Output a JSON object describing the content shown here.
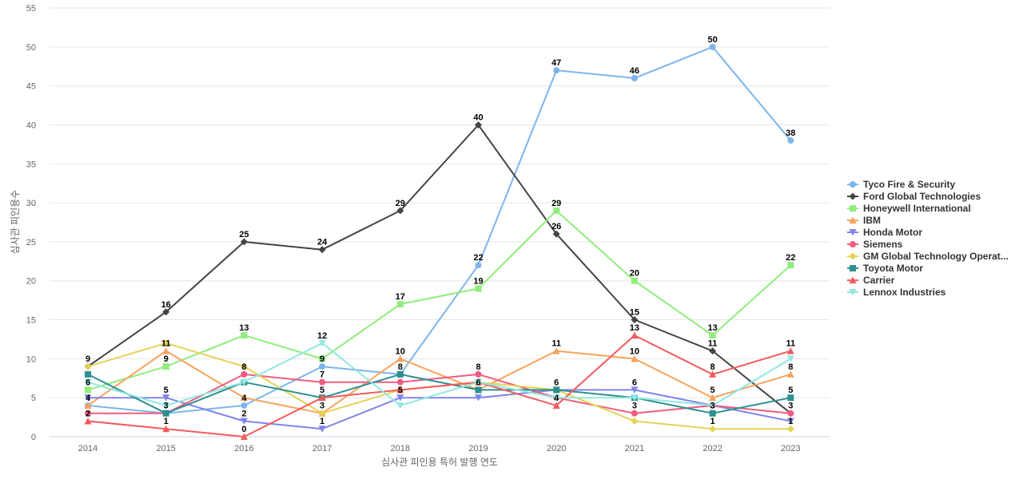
{
  "chart_data": {
    "type": "line",
    "title": "",
    "xlabel": "심사관 피인용 특허 발행 연도",
    "ylabel": "심사관 피인용수",
    "x": [
      "2014",
      "2015",
      "2016",
      "2017",
      "2018",
      "2019",
      "2020",
      "2021",
      "2022",
      "2023"
    ],
    "ylim": [
      0,
      55
    ],
    "yticks": [
      0,
      5,
      10,
      15,
      20,
      25,
      30,
      35,
      40,
      45,
      50,
      55
    ],
    "grid": true,
    "legend_position": "right",
    "series": [
      {
        "name": "Tyco Fire & Security",
        "color": "#7cb5ec",
        "marker": "circle",
        "values": [
          4,
          3,
          4,
          9,
          8,
          22,
          47,
          46,
          50,
          38
        ]
      },
      {
        "name": "Ford Global Technologies",
        "color": "#434348",
        "marker": "diamond",
        "values": [
          9,
          16,
          25,
          24,
          29,
          40,
          26,
          15,
          11,
          3
        ]
      },
      {
        "name": "Honeywell International",
        "color": "#90ed7d",
        "marker": "square",
        "values": [
          6,
          9,
          13,
          10,
          17,
          19,
          29,
          20,
          13,
          22
        ]
      },
      {
        "name": "IBM",
        "color": "#f7a35c",
        "marker": "triangle",
        "values": [
          4,
          11,
          5,
          3,
          10,
          6,
          11,
          10,
          5,
          8
        ]
      },
      {
        "name": "Honda Motor",
        "color": "#8085e9",
        "marker": "triangle-down",
        "values": [
          5,
          5,
          2,
          1,
          5,
          5,
          6,
          6,
          4,
          2
        ]
      },
      {
        "name": "Siemens",
        "color": "#f15c80",
        "marker": "circle",
        "values": [
          3,
          3,
          8,
          7,
          7,
          8,
          5,
          3,
          4,
          3
        ]
      },
      {
        "name": "GM Global Technology Operat...",
        "color": "#e4d354",
        "marker": "diamond",
        "values": [
          9,
          12,
          9,
          3,
          6,
          7,
          6,
          2,
          1,
          1
        ]
      },
      {
        "name": "Toyota Motor",
        "color": "#2b908f",
        "marker": "square",
        "values": [
          8,
          3,
          7,
          5,
          8,
          6,
          6,
          5,
          3,
          5
        ]
      },
      {
        "name": "Carrier",
        "color": "#f45b5b",
        "marker": "triangle",
        "values": [
          2,
          1,
          0,
          5,
          6,
          7,
          4,
          13,
          8,
          11
        ]
      },
      {
        "name": "Lennox Industries",
        "color": "#91e8e1",
        "marker": "triangle-down",
        "values": [
          7,
          4,
          7,
          12,
          4,
          7,
          5,
          5,
          4,
          10
        ]
      }
    ],
    "data_labels": [
      {
        "x": "2014",
        "text": "9",
        "y": 9
      },
      {
        "x": "2014",
        "text": "6",
        "y": 6
      },
      {
        "x": "2014",
        "text": "4",
        "y": 4
      },
      {
        "x": "2014",
        "text": "2",
        "y": 2
      },
      {
        "x": "2015",
        "text": "16",
        "y": 16
      },
      {
        "x": "2015",
        "text": "11",
        "y": 11
      },
      {
        "x": "2015",
        "text": "9",
        "y": 9
      },
      {
        "x": "2015",
        "text": "5",
        "y": 5
      },
      {
        "x": "2015",
        "text": "3",
        "y": 3
      },
      {
        "x": "2015",
        "text": "1",
        "y": 1
      },
      {
        "x": "2016",
        "text": "25",
        "y": 25
      },
      {
        "x": "2016",
        "text": "13",
        "y": 13
      },
      {
        "x": "2016",
        "text": "8",
        "y": 8
      },
      {
        "x": "2016",
        "text": "4",
        "y": 4
      },
      {
        "x": "2016",
        "text": "2",
        "y": 2
      },
      {
        "x": "2016",
        "text": "0",
        "y": 0
      },
      {
        "x": "2017",
        "text": "24",
        "y": 24
      },
      {
        "x": "2017",
        "text": "12",
        "y": 12
      },
      {
        "x": "2017",
        "text": "9",
        "y": 9
      },
      {
        "x": "2017",
        "text": "7",
        "y": 7
      },
      {
        "x": "2017",
        "text": "5",
        "y": 5
      },
      {
        "x": "2017",
        "text": "3",
        "y": 3
      },
      {
        "x": "2017",
        "text": "1",
        "y": 1
      },
      {
        "x": "2018",
        "text": "29",
        "y": 29
      },
      {
        "x": "2018",
        "text": "17",
        "y": 17
      },
      {
        "x": "2018",
        "text": "10",
        "y": 10
      },
      {
        "x": "2018",
        "text": "8",
        "y": 8
      },
      {
        "x": "2018",
        "text": "5",
        "y": 5
      },
      {
        "x": "2019",
        "text": "40",
        "y": 40
      },
      {
        "x": "2019",
        "text": "22",
        "y": 22
      },
      {
        "x": "2019",
        "text": "19",
        "y": 19
      },
      {
        "x": "2019",
        "text": "8",
        "y": 8
      },
      {
        "x": "2019",
        "text": "6",
        "y": 6
      },
      {
        "x": "2020",
        "text": "47",
        "y": 47
      },
      {
        "x": "2020",
        "text": "29",
        "y": 29
      },
      {
        "x": "2020",
        "text": "26",
        "y": 26
      },
      {
        "x": "2020",
        "text": "11",
        "y": 11
      },
      {
        "x": "2020",
        "text": "6",
        "y": 6
      },
      {
        "x": "2020",
        "text": "4",
        "y": 4
      },
      {
        "x": "2021",
        "text": "46",
        "y": 46
      },
      {
        "x": "2021",
        "text": "20",
        "y": 20
      },
      {
        "x": "2021",
        "text": "15",
        "y": 15
      },
      {
        "x": "2021",
        "text": "13",
        "y": 13
      },
      {
        "x": "2021",
        "text": "10",
        "y": 10
      },
      {
        "x": "2021",
        "text": "6",
        "y": 6
      },
      {
        "x": "2021",
        "text": "3",
        "y": 3
      },
      {
        "x": "2022",
        "text": "50",
        "y": 50
      },
      {
        "x": "2022",
        "text": "13",
        "y": 13
      },
      {
        "x": "2022",
        "text": "11",
        "y": 11
      },
      {
        "x": "2022",
        "text": "8",
        "y": 8
      },
      {
        "x": "2022",
        "text": "5",
        "y": 5
      },
      {
        "x": "2022",
        "text": "3",
        "y": 3
      },
      {
        "x": "2022",
        "text": "1",
        "y": 1
      },
      {
        "x": "2023",
        "text": "38",
        "y": 38
      },
      {
        "x": "2023",
        "text": "22",
        "y": 22
      },
      {
        "x": "2023",
        "text": "11",
        "y": 11
      },
      {
        "x": "2023",
        "text": "8",
        "y": 8
      },
      {
        "x": "2023",
        "text": "5",
        "y": 5
      },
      {
        "x": "2023",
        "text": "3",
        "y": 3
      },
      {
        "x": "2023",
        "text": "1",
        "y": 1
      }
    ]
  }
}
